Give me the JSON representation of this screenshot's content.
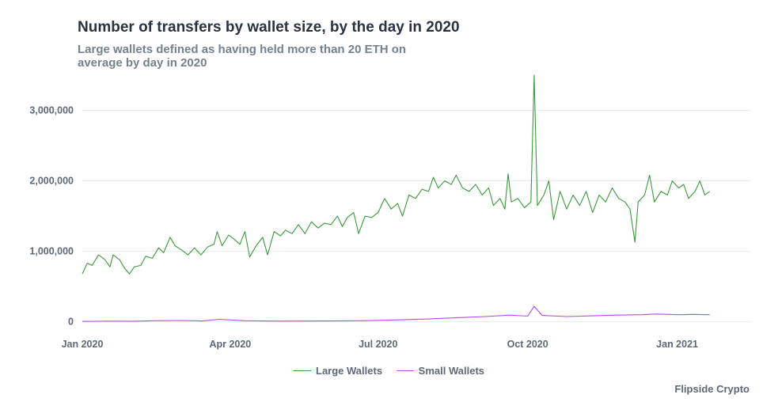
{
  "chart_data": {
    "type": "line",
    "title": "Number of transfers by wallet size, by the day in 2020",
    "subtitle": "Large wallets defined as having held more than 20 ETH on average by day in 2020",
    "caption": "Flipside Crypto",
    "xlabel": "",
    "ylabel": "",
    "x_range": [
      "2020-01-01",
      "2021-02-15"
    ],
    "ylim": [
      -150000,
      3500000
    ],
    "x_ticks": [
      {
        "date": "2020-01-01",
        "label": "Jan 2020"
      },
      {
        "date": "2020-04-01",
        "label": "Apr 2020"
      },
      {
        "date": "2020-07-01",
        "label": "Jul 2020"
      },
      {
        "date": "2020-10-01",
        "label": "Oct 2020"
      },
      {
        "date": "2021-01-01",
        "label": "Jan 2021"
      }
    ],
    "y_ticks": [
      {
        "value": 0,
        "label": "0"
      },
      {
        "value": 1000000,
        "label": "1,000,000"
      },
      {
        "value": 2000000,
        "label": "2,000,000"
      },
      {
        "value": 3000000,
        "label": "3,000,000"
      }
    ],
    "grid": "horizontal",
    "legend_position": "bottom",
    "series": [
      {
        "name": "Large Wallets",
        "color": "#3a9a3a",
        "points": [
          [
            "2020-01-01",
            680000
          ],
          [
            "2020-01-04",
            830000
          ],
          [
            "2020-01-07",
            800000
          ],
          [
            "2020-01-11",
            950000
          ],
          [
            "2020-01-15",
            880000
          ],
          [
            "2020-01-18",
            780000
          ],
          [
            "2020-01-20",
            950000
          ],
          [
            "2020-01-24",
            880000
          ],
          [
            "2020-01-27",
            760000
          ],
          [
            "2020-01-30",
            680000
          ],
          [
            "2020-02-02",
            780000
          ],
          [
            "2020-02-06",
            800000
          ],
          [
            "2020-02-09",
            930000
          ],
          [
            "2020-02-13",
            900000
          ],
          [
            "2020-02-17",
            1050000
          ],
          [
            "2020-02-20",
            980000
          ],
          [
            "2020-02-24",
            1200000
          ],
          [
            "2020-02-27",
            1080000
          ],
          [
            "2020-03-02",
            1020000
          ],
          [
            "2020-03-06",
            950000
          ],
          [
            "2020-03-10",
            1050000
          ],
          [
            "2020-03-14",
            950000
          ],
          [
            "2020-03-18",
            1060000
          ],
          [
            "2020-03-22",
            1100000
          ],
          [
            "2020-03-24",
            1280000
          ],
          [
            "2020-03-27",
            1080000
          ],
          [
            "2020-03-31",
            1230000
          ],
          [
            "2020-04-03",
            1180000
          ],
          [
            "2020-04-07",
            1100000
          ],
          [
            "2020-04-10",
            1280000
          ],
          [
            "2020-04-13",
            920000
          ],
          [
            "2020-04-17",
            1080000
          ],
          [
            "2020-04-21",
            1200000
          ],
          [
            "2020-04-24",
            950000
          ],
          [
            "2020-04-28",
            1280000
          ],
          [
            "2020-05-02",
            1220000
          ],
          [
            "2020-05-05",
            1300000
          ],
          [
            "2020-05-09",
            1250000
          ],
          [
            "2020-05-13",
            1380000
          ],
          [
            "2020-05-17",
            1250000
          ],
          [
            "2020-05-21",
            1420000
          ],
          [
            "2020-05-25",
            1330000
          ],
          [
            "2020-05-29",
            1400000
          ],
          [
            "2020-06-02",
            1380000
          ],
          [
            "2020-06-06",
            1500000
          ],
          [
            "2020-06-09",
            1350000
          ],
          [
            "2020-06-12",
            1480000
          ],
          [
            "2020-06-16",
            1550000
          ],
          [
            "2020-06-19",
            1250000
          ],
          [
            "2020-06-23",
            1500000
          ],
          [
            "2020-06-27",
            1480000
          ],
          [
            "2020-07-01",
            1550000
          ],
          [
            "2020-07-05",
            1750000
          ],
          [
            "2020-07-09",
            1600000
          ],
          [
            "2020-07-13",
            1680000
          ],
          [
            "2020-07-16",
            1500000
          ],
          [
            "2020-07-20",
            1800000
          ],
          [
            "2020-07-24",
            1750000
          ],
          [
            "2020-07-28",
            1880000
          ],
          [
            "2020-08-01",
            1850000
          ],
          [
            "2020-08-04",
            2050000
          ],
          [
            "2020-08-07",
            1900000
          ],
          [
            "2020-08-11",
            2000000
          ],
          [
            "2020-08-15",
            1950000
          ],
          [
            "2020-08-18",
            2080000
          ],
          [
            "2020-08-22",
            1900000
          ],
          [
            "2020-08-26",
            1850000
          ],
          [
            "2020-08-30",
            1950000
          ],
          [
            "2020-09-03",
            1800000
          ],
          [
            "2020-09-07",
            1900000
          ],
          [
            "2020-09-10",
            1650000
          ],
          [
            "2020-09-14",
            1750000
          ],
          [
            "2020-09-17",
            1600000
          ],
          [
            "2020-09-19",
            2100000
          ],
          [
            "2020-09-21",
            1700000
          ],
          [
            "2020-09-25",
            1750000
          ],
          [
            "2020-09-29",
            1620000
          ],
          [
            "2020-10-03",
            1700000
          ],
          [
            "2020-10-05",
            3500000
          ],
          [
            "2020-10-07",
            1650000
          ],
          [
            "2020-10-11",
            1800000
          ],
          [
            "2020-10-14",
            2000000
          ],
          [
            "2020-10-17",
            1450000
          ],
          [
            "2020-10-21",
            1850000
          ],
          [
            "2020-10-25",
            1600000
          ],
          [
            "2020-10-29",
            1800000
          ],
          [
            "2020-11-02",
            1650000
          ],
          [
            "2020-11-06",
            1850000
          ],
          [
            "2020-11-10",
            1550000
          ],
          [
            "2020-11-14",
            1800000
          ],
          [
            "2020-11-18",
            1700000
          ],
          [
            "2020-11-22",
            1900000
          ],
          [
            "2020-11-26",
            1750000
          ],
          [
            "2020-11-30",
            1700000
          ],
          [
            "2020-12-03",
            1600000
          ],
          [
            "2020-12-06",
            1130000
          ],
          [
            "2020-12-08",
            1700000
          ],
          [
            "2020-12-12",
            1800000
          ],
          [
            "2020-12-15",
            2080000
          ],
          [
            "2020-12-18",
            1700000
          ],
          [
            "2020-12-22",
            1850000
          ],
          [
            "2020-12-26",
            1800000
          ],
          [
            "2020-12-29",
            2000000
          ],
          [
            "2021-01-02",
            1900000
          ],
          [
            "2021-01-05",
            1950000
          ],
          [
            "2021-01-08",
            1750000
          ],
          [
            "2021-01-12",
            1850000
          ],
          [
            "2021-01-15",
            2000000
          ],
          [
            "2021-01-18",
            1800000
          ],
          [
            "2021-01-21",
            1850000
          ]
        ]
      },
      {
        "name": "Small Wallets",
        "color": "#b34bf0",
        "points": [
          [
            "2020-01-01",
            5000
          ],
          [
            "2020-01-15",
            10000
          ],
          [
            "2020-02-01",
            8000
          ],
          [
            "2020-02-15",
            15000
          ],
          [
            "2020-03-01",
            18000
          ],
          [
            "2020-03-15",
            12000
          ],
          [
            "2020-03-25",
            35000
          ],
          [
            "2020-04-10",
            15000
          ],
          [
            "2020-05-01",
            10000
          ],
          [
            "2020-06-01",
            12000
          ],
          [
            "2020-06-20",
            15000
          ],
          [
            "2020-07-10",
            25000
          ],
          [
            "2020-08-01",
            40000
          ],
          [
            "2020-08-20",
            60000
          ],
          [
            "2020-09-05",
            75000
          ],
          [
            "2020-09-20",
            95000
          ],
          [
            "2020-10-01",
            80000
          ],
          [
            "2020-10-05",
            220000
          ],
          [
            "2020-10-10",
            90000
          ],
          [
            "2020-10-25",
            75000
          ],
          [
            "2020-11-10",
            85000
          ],
          [
            "2020-11-25",
            95000
          ],
          [
            "2020-12-10",
            100000
          ],
          [
            "2020-12-20",
            110000
          ],
          [
            "2021-01-01",
            100000
          ],
          [
            "2021-01-10",
            105000
          ],
          [
            "2021-01-21",
            100000
          ]
        ]
      }
    ]
  }
}
